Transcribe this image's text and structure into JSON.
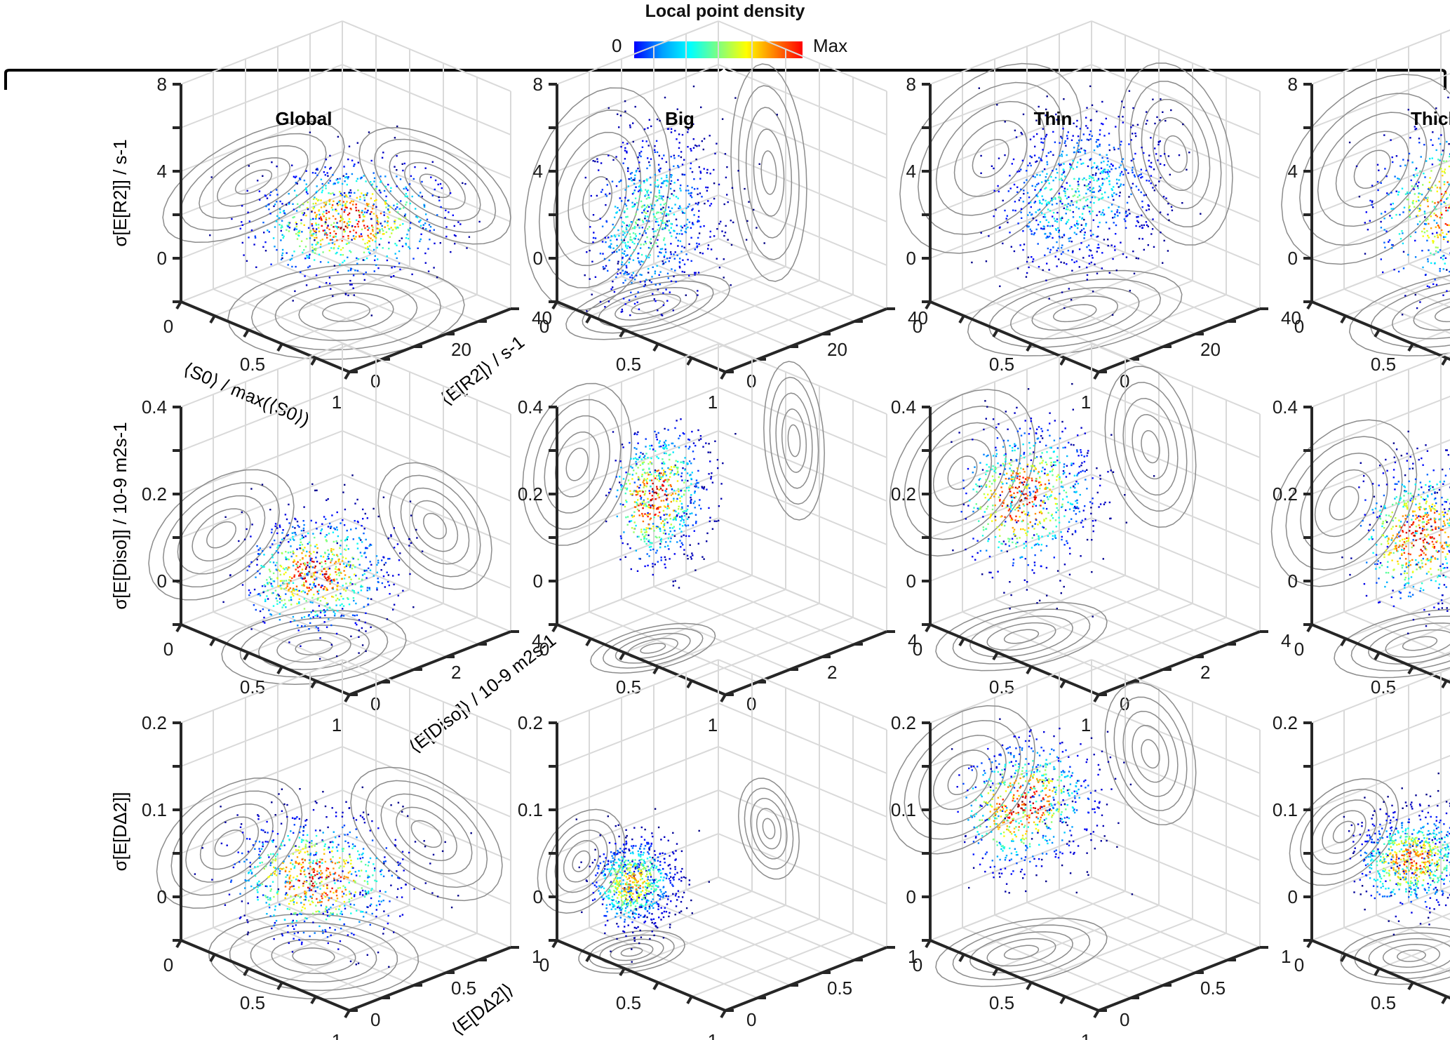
{
  "colorbar": {
    "title": "Local point density",
    "min_label": "0",
    "max_label": "Max",
    "colormap": "jet",
    "colors": [
      "#0000ff",
      "#00a0ff",
      "#00ffff",
      "#7fff7f",
      "#ffff00",
      "#ff8000",
      "#ff0000"
    ]
  },
  "columns": [
    "Global",
    "Big",
    "Thin",
    "Thick"
  ],
  "chart_data": {
    "type": "scatter",
    "subtype": "3D scatter with density coloring and projected contour marginals",
    "grid": true,
    "columns": [
      "Global",
      "Big",
      "Thin",
      "Thick"
    ],
    "rows": [
      {
        "name": "R2",
        "x_label_parts": [
          "⟨",
          "S",
          "0",
          "⟩ / max(⟨",
          "S",
          "0",
          "⟩)"
        ],
        "x_label": "⟨S0⟩ / max(⟨S0⟩)",
        "y_label": "⟨E[R2]⟩ / s-1",
        "z_label": "σ[E[R2]] / s-1",
        "xlim": [
          0,
          1
        ],
        "ylim": [
          0,
          40
        ],
        "zlim": [
          -2,
          8
        ],
        "xticks": [
          "0",
          "0.5",
          "1"
        ],
        "yticks": [
          "0",
          "20",
          "40"
        ],
        "zticks": [
          "0",
          "4",
          "8"
        ],
        "panels": [
          {
            "column": "Global",
            "density_peak": {
              "x": 0.55,
              "y": 18,
              "z": 2.2
            },
            "peak_level": 1.0,
            "spread": {
              "x": 0.2,
              "y": 10,
              "z": 1.0
            }
          },
          {
            "column": "Big",
            "density_peak": {
              "x": 0.3,
              "y": 10,
              "z": 2.0
            },
            "peak_level": 0.55,
            "spread": {
              "x": 0.1,
              "y": 8,
              "z": 2.2
            }
          },
          {
            "column": "Thin",
            "density_peak": {
              "x": 0.5,
              "y": 15,
              "z": 3.5
            },
            "peak_level": 0.5,
            "spread": {
              "x": 0.15,
              "y": 10,
              "z": 1.8
            }
          },
          {
            "column": "Thick",
            "density_peak": {
              "x": 0.5,
              "y": 15,
              "z": 3.0
            },
            "peak_level": 0.95,
            "spread": {
              "x": 0.15,
              "y": 10,
              "z": 1.8
            }
          }
        ]
      },
      {
        "name": "Diso",
        "x_label": "",
        "y_label": "⟨E[Diso]⟩ / 10-9 m2s-1",
        "z_label": "σ[E[Diso]] / 10-9 m2s-1",
        "xlim": [
          0,
          1
        ],
        "ylim": [
          0,
          4
        ],
        "zlim": [
          -0.1,
          0.4
        ],
        "xticks": [
          "0",
          "0.5",
          "1"
        ],
        "yticks": [
          "0",
          "2",
          "4"
        ],
        "zticks": [
          "0",
          "0.2",
          "0.4"
        ],
        "panels": [
          {
            "column": "Global",
            "density_peak": {
              "x": 0.55,
              "y": 1.0,
              "z": 0.07
            },
            "peak_level": 1.0,
            "spread": {
              "x": 0.15,
              "y": 0.8,
              "z": 0.06
            }
          },
          {
            "column": "Big",
            "density_peak": {
              "x": 0.45,
              "y": 0.5,
              "z": 0.25
            },
            "peak_level": 1.0,
            "spread": {
              "x": 0.08,
              "y": 0.6,
              "z": 0.08
            }
          },
          {
            "column": "Thin",
            "density_peak": {
              "x": 0.35,
              "y": 0.8,
              "z": 0.22
            },
            "peak_level": 1.0,
            "spread": {
              "x": 0.12,
              "y": 0.8,
              "z": 0.08
            }
          },
          {
            "column": "Thick",
            "density_peak": {
              "x": 0.45,
              "y": 0.8,
              "z": 0.15
            },
            "peak_level": 1.0,
            "spread": {
              "x": 0.12,
              "y": 0.8,
              "z": 0.08
            }
          }
        ]
      },
      {
        "name": "DDelta2",
        "x_label": "",
        "y_label": "⟨E[DΔ2]⟩",
        "z_label": "σ[E[DΔ2]]",
        "xlim": [
          0,
          1
        ],
        "ylim": [
          0,
          1
        ],
        "zlim": [
          -0.05,
          0.2
        ],
        "xticks": [
          "0",
          "0.5",
          "1"
        ],
        "yticks": [
          "0",
          "0.5",
          "1"
        ],
        "zticks": [
          "0",
          "0.1",
          "0.2"
        ],
        "panels": [
          {
            "column": "Global",
            "density_peak": {
              "x": 0.5,
              "y": 0.3,
              "z": 0.04
            },
            "peak_level": 1.0,
            "spread": {
              "x": 0.2,
              "y": 0.2,
              "z": 0.03
            }
          },
          {
            "column": "Big",
            "density_peak": {
              "x": 0.3,
              "y": 0.15,
              "z": 0.03
            },
            "peak_level": 0.8,
            "spread": {
              "x": 0.08,
              "y": 0.12,
              "z": 0.025
            }
          },
          {
            "column": "Thin",
            "density_peak": {
              "x": 0.35,
              "y": 0.2,
              "z": 0.12
            },
            "peak_level": 1.0,
            "spread": {
              "x": 0.12,
              "y": 0.2,
              "z": 0.035
            }
          },
          {
            "column": "Thick",
            "density_peak": {
              "x": 0.4,
              "y": 0.2,
              "z": 0.06
            },
            "peak_level": 0.9,
            "spread": {
              "x": 0.12,
              "y": 0.15,
              "z": 0.025
            }
          }
        ]
      }
    ]
  }
}
